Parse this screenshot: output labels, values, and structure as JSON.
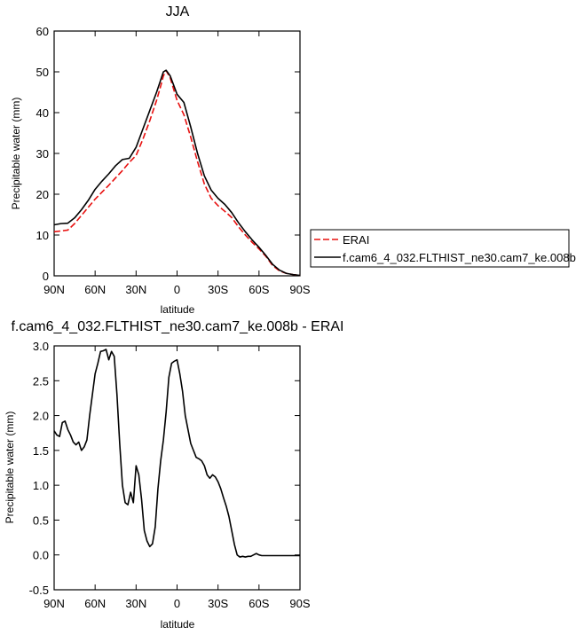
{
  "chart_data": [
    {
      "type": "line",
      "title": "JJA",
      "xlabel": "latitude",
      "ylabel": "Precipitable water (mm)",
      "xlim": [
        90,
        -90
      ],
      "ylim": [
        0,
        60
      ],
      "x_ticks": [
        90,
        60,
        30,
        0,
        -30,
        -60,
        -90
      ],
      "x_tick_labels": [
        "90N",
        "60N",
        "30N",
        "0",
        "30S",
        "60S",
        "90S"
      ],
      "y_ticks": [
        0,
        10,
        20,
        30,
        40,
        50,
        60
      ],
      "y_tick_labels": [
        "0",
        "10",
        "20",
        "30",
        "40",
        "50",
        "60"
      ],
      "legend_position": "right",
      "series": [
        {
          "name": "ERAI",
          "color": "#e8100f",
          "dash": "dashed",
          "x": [
            90,
            85,
            80,
            75,
            70,
            65,
            60,
            55,
            50,
            45,
            40,
            35,
            30,
            25,
            20,
            15,
            12,
            10,
            8,
            5,
            0,
            -5,
            -10,
            -15,
            -20,
            -25,
            -30,
            -35,
            -40,
            -45,
            -50,
            -55,
            -60,
            -65,
            -70,
            -75,
            -80,
            -85,
            -90
          ],
          "y": [
            10.8,
            11.0,
            11.2,
            12.8,
            14.8,
            16.8,
            18.8,
            20.5,
            22.2,
            24.0,
            25.8,
            27.8,
            29.5,
            33.5,
            38.0,
            43.0,
            46.5,
            49.0,
            50.3,
            48.5,
            43.0,
            39.5,
            34.0,
            28.0,
            22.5,
            19.0,
            17.2,
            15.8,
            14.3,
            12.0,
            10.0,
            8.2,
            6.6,
            4.8,
            2.5,
            1.2,
            0.6,
            0.3,
            0.1
          ]
        },
        {
          "name": "f.cam6_4_032.FLTHIST_ne30.cam7_ke.008b",
          "color": "#000000",
          "dash": "solid",
          "x": [
            90,
            85,
            80,
            75,
            70,
            65,
            60,
            55,
            50,
            45,
            40,
            35,
            30,
            25,
            20,
            15,
            12,
            10,
            8,
            5,
            0,
            -5,
            -10,
            -15,
            -20,
            -25,
            -30,
            -35,
            -40,
            -45,
            -50,
            -55,
            -60,
            -65,
            -70,
            -75,
            -80,
            -85,
            -90
          ],
          "y": [
            12.5,
            12.8,
            12.9,
            14.2,
            16.2,
            18.5,
            21.2,
            23.2,
            25.0,
            27.0,
            28.5,
            28.8,
            31.5,
            36.0,
            40.5,
            45.0,
            48.0,
            50.0,
            50.4,
            49.0,
            44.5,
            42.5,
            36.5,
            30.0,
            24.5,
            21.0,
            19.0,
            17.5,
            15.5,
            13.0,
            10.8,
            8.8,
            7.0,
            5.0,
            2.8,
            1.4,
            0.6,
            0.3,
            0.1
          ]
        }
      ]
    },
    {
      "type": "line",
      "title": "f.cam6_4_032.FLTHIST_ne30.cam7_ke.008b - ERAI",
      "xlabel": "latitude",
      "ylabel": "Precipitable water (mm)",
      "xlim": [
        90,
        -90
      ],
      "ylim": [
        -0.5,
        3.0
      ],
      "x_ticks": [
        90,
        60,
        30,
        0,
        -30,
        -60,
        -90
      ],
      "x_tick_labels": [
        "90N",
        "60N",
        "30N",
        "0",
        "30S",
        "60S",
        "90S"
      ],
      "y_ticks": [
        -0.5,
        0.0,
        0.5,
        1.0,
        1.5,
        2.0,
        2.5,
        3.0
      ],
      "y_tick_labels": [
        "-0.5",
        "0.0",
        "0.5",
        "1.0",
        "1.5",
        "2.0",
        "2.5",
        "3.0"
      ],
      "series": [
        {
          "color": "#000000",
          "dash": "solid",
          "x": [
            90,
            88,
            86,
            84,
            82,
            80,
            78,
            76,
            74,
            72,
            70,
            68,
            66,
            64,
            62,
            60,
            58,
            56,
            54,
            52,
            50,
            48,
            46,
            44,
            42,
            40,
            38,
            36,
            34,
            32,
            30,
            28,
            26,
            24,
            22,
            20,
            18,
            16,
            14,
            12,
            10,
            8,
            6,
            4,
            2,
            0,
            -2,
            -4,
            -6,
            -8,
            -10,
            -12,
            -14,
            -16,
            -18,
            -20,
            -22,
            -24,
            -26,
            -28,
            -30,
            -32,
            -34,
            -36,
            -38,
            -40,
            -42,
            -44,
            -46,
            -48,
            -50,
            -52,
            -54,
            -56,
            -58,
            -60,
            -62,
            -64,
            -66,
            -68,
            -70,
            -72,
            -74,
            -76,
            -78,
            -80,
            -82,
            -84,
            -86,
            -88,
            -90
          ],
          "y": [
            1.78,
            1.72,
            1.7,
            1.9,
            1.92,
            1.8,
            1.72,
            1.62,
            1.58,
            1.62,
            1.5,
            1.55,
            1.65,
            2.0,
            2.3,
            2.6,
            2.75,
            2.92,
            2.93,
            2.95,
            2.8,
            2.92,
            2.85,
            2.3,
            1.6,
            1.0,
            0.75,
            0.72,
            0.9,
            0.75,
            1.28,
            1.15,
            0.8,
            0.35,
            0.2,
            0.12,
            0.16,
            0.4,
            0.95,
            1.35,
            1.65,
            2.05,
            2.55,
            2.75,
            2.78,
            2.8,
            2.6,
            2.35,
            2.0,
            1.8,
            1.6,
            1.5,
            1.4,
            1.38,
            1.35,
            1.28,
            1.15,
            1.1,
            1.15,
            1.12,
            1.05,
            0.95,
            0.82,
            0.7,
            0.55,
            0.35,
            0.15,
            0.0,
            -0.03,
            -0.02,
            -0.03,
            -0.02,
            -0.02,
            0.0,
            0.02,
            0.0,
            -0.01,
            -0.01,
            -0.01,
            -0.01,
            -0.01,
            -0.01,
            -0.01,
            -0.01,
            -0.01,
            -0.01,
            -0.01,
            -0.01,
            -0.01,
            -0.01,
            -0.01
          ]
        }
      ]
    }
  ]
}
